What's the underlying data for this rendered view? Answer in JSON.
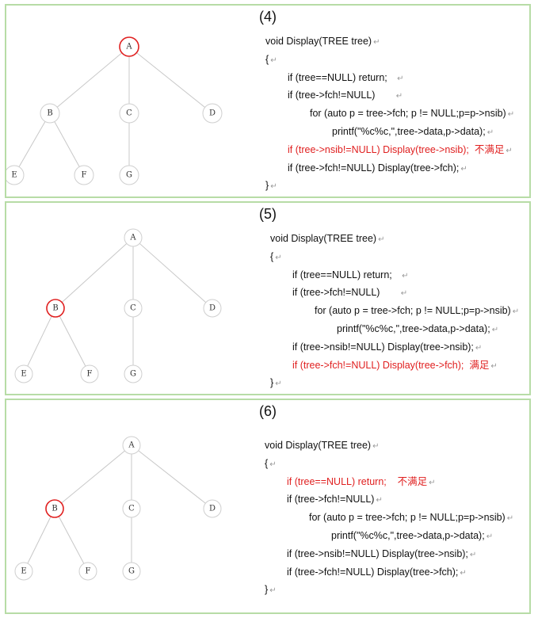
{
  "panels": [
    {
      "title": "(4)",
      "code": [
        {
          "text": "void Display(TREE tree)",
          "indent": 0,
          "red": false,
          "ret": "↵"
        },
        {
          "text": "{",
          "indent": 0,
          "red": false,
          "ret": "↵"
        },
        {
          "text": "if (tree==NULL) return;   ",
          "indent": 1,
          "red": false,
          "ret": "↵"
        },
        {
          "text": "if (tree->fch!=NULL)       ",
          "indent": 1,
          "red": false,
          "ret": "↵"
        },
        {
          "text": "for (auto p = tree->fch; p != NULL;p=p->nsib)",
          "indent": 2,
          "red": false,
          "ret": "↵"
        },
        {
          "text": "printf(\"%c%c,\",tree->data,p->data);",
          "indent": 3,
          "red": false,
          "ret": "↵"
        },
        {
          "text": "if (tree->nsib!=NULL) Display(tree->nsib);  不满足",
          "indent": 1,
          "red": true,
          "ret": "↵"
        },
        {
          "text": "if (tree->fch!=NULL) Display(tree->fch);",
          "indent": 1,
          "red": false,
          "ret": "↵"
        },
        {
          "text": "}",
          "indent": 0,
          "red": false,
          "ret": "↵"
        }
      ],
      "nodes": [
        {
          "id": "A",
          "highlight": true
        },
        {
          "id": "B",
          "highlight": false
        },
        {
          "id": "C",
          "highlight": false
        },
        {
          "id": "D",
          "highlight": false
        },
        {
          "id": "E",
          "highlight": false
        },
        {
          "id": "F",
          "highlight": false
        },
        {
          "id": "G",
          "highlight": false
        }
      ]
    },
    {
      "title": "(5)",
      "code": [
        {
          "text": "void Display(TREE tree)",
          "indent": 0,
          "red": false,
          "ret": "↵"
        },
        {
          "text": "{",
          "indent": 0,
          "red": false,
          "ret": "↵"
        },
        {
          "text": "if (tree==NULL) return;   ",
          "indent": 1,
          "red": false,
          "ret": "↵"
        },
        {
          "text": "if (tree->fch!=NULL)       ",
          "indent": 1,
          "red": false,
          "ret": "↵"
        },
        {
          "text": "for (auto p = tree->fch; p != NULL;p=p->nsib)",
          "indent": 2,
          "red": false,
          "ret": "↵"
        },
        {
          "text": "printf(\"%c%c,\",tree->data,p->data);",
          "indent": 3,
          "red": false,
          "ret": "↵"
        },
        {
          "text": "if (tree->nsib!=NULL) Display(tree->nsib);",
          "indent": 1,
          "red": false,
          "ret": "↵"
        },
        {
          "text": "if (tree->fch!=NULL) Display(tree->fch);  满足",
          "indent": 1,
          "red": true,
          "ret": "↵"
        },
        {
          "text": "}",
          "indent": 0,
          "red": false,
          "ret": "↵"
        }
      ],
      "nodes": [
        {
          "id": "A",
          "highlight": false
        },
        {
          "id": "B",
          "highlight": true
        },
        {
          "id": "C",
          "highlight": false
        },
        {
          "id": "D",
          "highlight": false
        },
        {
          "id": "E",
          "highlight": false
        },
        {
          "id": "F",
          "highlight": false
        },
        {
          "id": "G",
          "highlight": false
        }
      ]
    },
    {
      "title": "(6)",
      "code": [
        {
          "text": "void Display(TREE tree)",
          "indent": 0,
          "red": false,
          "ret": "↵"
        },
        {
          "text": "{",
          "indent": 0,
          "red": false,
          "ret": "↵"
        },
        {
          "text": "if (tree==NULL) return;    不满足",
          "indent": 1,
          "red": true,
          "ret": "↵"
        },
        {
          "text": "if (tree->fch!=NULL)",
          "indent": 1,
          "red": false,
          "ret": "↵"
        },
        {
          "text": "for (auto p = tree->fch; p != NULL;p=p->nsib)",
          "indent": 2,
          "red": false,
          "ret": "↵"
        },
        {
          "text": "printf(\"%c%c,\",tree->data,p->data);",
          "indent": 3,
          "red": false,
          "ret": "↵"
        },
        {
          "text": "if (tree->nsib!=NULL) Display(tree->nsib);",
          "indent": 1,
          "red": false,
          "ret": "↵"
        },
        {
          "text": "if (tree->fch!=NULL) Display(tree->fch);",
          "indent": 1,
          "red": false,
          "ret": "↵"
        },
        {
          "text": "}",
          "indent": 0,
          "red": false,
          "ret": "↵"
        }
      ],
      "nodes": [
        {
          "id": "A",
          "highlight": false
        },
        {
          "id": "B",
          "highlight": true
        },
        {
          "id": "C",
          "highlight": false
        },
        {
          "id": "D",
          "highlight": false
        },
        {
          "id": "E",
          "highlight": false
        },
        {
          "id": "F",
          "highlight": false
        },
        {
          "id": "G",
          "highlight": false
        }
      ]
    }
  ],
  "edges": [
    [
      "A",
      "B"
    ],
    [
      "A",
      "C"
    ],
    [
      "A",
      "D"
    ],
    [
      "B",
      "E"
    ],
    [
      "B",
      "F"
    ],
    [
      "C",
      "G"
    ]
  ],
  "colors": {
    "highlight": "#e02020",
    "border": "#b7dca6",
    "node_stroke": "#cfcfcf",
    "edge": "#c8c8c8"
  }
}
